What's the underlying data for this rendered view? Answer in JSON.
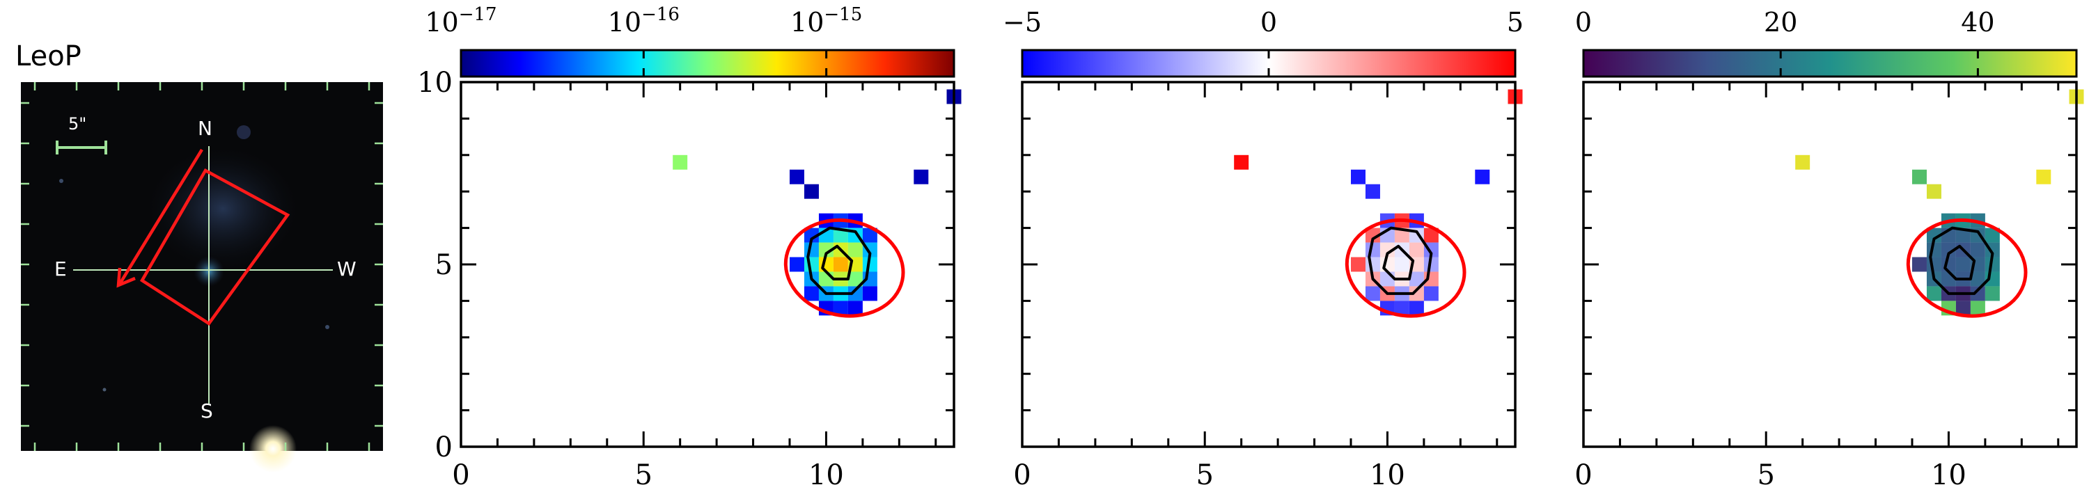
{
  "panel_title": "LeoP",
  "image_panel": {
    "scale_label": "5\"",
    "compass": {
      "north": "N",
      "south": "S",
      "east": "E",
      "west": "W"
    }
  },
  "chart_data": [
    {
      "type": "heatmap",
      "title": "",
      "xlabel": "",
      "ylabel": "",
      "xlim": [
        0,
        13.5
      ],
      "ylim": [
        0,
        10
      ],
      "xticks": [
        "0",
        "5",
        "10"
      ],
      "yticks": [
        "0",
        "5",
        "10"
      ],
      "colorbar": {
        "scale": "log",
        "range": [
          1e-17,
          5e-15
        ],
        "tick_values": [
          1e-17,
          1e-16,
          1e-15
        ],
        "tick_labels": [
          {
            "base": "10",
            "exp": "−17"
          },
          {
            "base": "10",
            "exp": "−16"
          },
          {
            "base": "10",
            "exp": "−15"
          }
        ],
        "colormap": "jet"
      },
      "contours": "black",
      "ellipse": {
        "center": [
          10.5,
          4.9
        ],
        "color": "#ff0000"
      },
      "pixels": [
        {
          "x": 6.0,
          "y": 7.8,
          "v": 2.5e-16
        },
        {
          "x": 13.5,
          "y": 9.6,
          "v": 1.2e-17
        },
        {
          "x": 9.2,
          "y": 7.4,
          "v": 1.5e-17
        },
        {
          "x": 9.6,
          "y": 7.0,
          "v": 1.3e-17
        },
        {
          "x": 12.6,
          "y": 7.4,
          "v": 1.4e-17
        },
        {
          "x": 10.0,
          "y": 6.2,
          "v": 2e-17
        },
        {
          "x": 10.4,
          "y": 6.2,
          "v": 3e-17
        },
        {
          "x": 10.8,
          "y": 6.2,
          "v": 2e-17
        },
        {
          "x": 9.6,
          "y": 5.8,
          "v": 3e-17
        },
        {
          "x": 10.0,
          "y": 5.8,
          "v": 8e-17
        },
        {
          "x": 10.4,
          "y": 5.8,
          "v": 1.3e-16
        },
        {
          "x": 10.8,
          "y": 5.8,
          "v": 9e-17
        },
        {
          "x": 11.2,
          "y": 5.8,
          "v": 3e-17
        },
        {
          "x": 9.6,
          "y": 5.4,
          "v": 6e-17
        },
        {
          "x": 10.0,
          "y": 5.4,
          "v": 2.6e-16
        },
        {
          "x": 10.4,
          "y": 5.4,
          "v": 4e-16
        },
        {
          "x": 10.8,
          "y": 5.4,
          "v": 2.8e-16
        },
        {
          "x": 11.2,
          "y": 5.4,
          "v": 7e-17
        },
        {
          "x": 9.2,
          "y": 5.0,
          "v": 2.5e-17
        },
        {
          "x": 9.6,
          "y": 5.0,
          "v": 1.1e-16
        },
        {
          "x": 10.0,
          "y": 5.0,
          "v": 5.5e-16
        },
        {
          "x": 10.4,
          "y": 5.0,
          "v": 8e-16
        },
        {
          "x": 10.8,
          "y": 5.0,
          "v": 4.5e-16
        },
        {
          "x": 11.2,
          "y": 5.0,
          "v": 9e-17
        },
        {
          "x": 9.6,
          "y": 4.6,
          "v": 6e-17
        },
        {
          "x": 10.0,
          "y": 4.6,
          "v": 2.4e-16
        },
        {
          "x": 10.4,
          "y": 4.6,
          "v": 3.5e-16
        },
        {
          "x": 10.8,
          "y": 4.6,
          "v": 2.2e-16
        },
        {
          "x": 11.2,
          "y": 4.6,
          "v": 5e-17
        },
        {
          "x": 9.6,
          "y": 4.2,
          "v": 2.5e-17
        },
        {
          "x": 10.0,
          "y": 4.2,
          "v": 6e-17
        },
        {
          "x": 10.4,
          "y": 4.2,
          "v": 9e-17
        },
        {
          "x": 10.8,
          "y": 4.2,
          "v": 5e-17
        },
        {
          "x": 11.2,
          "y": 4.2,
          "v": 2e-17
        },
        {
          "x": 10.0,
          "y": 3.8,
          "v": 2e-17
        },
        {
          "x": 10.4,
          "y": 3.8,
          "v": 2.5e-17
        },
        {
          "x": 10.8,
          "y": 3.8,
          "v": 2e-17
        }
      ]
    },
    {
      "type": "heatmap",
      "title": "",
      "xlabel": "",
      "ylabel": "",
      "xlim": [
        0,
        13.5
      ],
      "ylim": [
        0,
        10
      ],
      "xticks": [
        "0",
        "5",
        "10"
      ],
      "yticks": [
        "0",
        "5",
        "10"
      ],
      "colorbar": {
        "scale": "linear",
        "range": [
          -5,
          5
        ],
        "tick_values": [
          -5,
          0,
          5
        ],
        "tick_labels": [
          {
            "base": "−5",
            "exp": ""
          },
          {
            "base": "0",
            "exp": ""
          },
          {
            "base": "5",
            "exp": ""
          }
        ],
        "colormap": "bwr"
      },
      "contours": "black",
      "ellipse": {
        "center": [
          10.5,
          4.9
        ],
        "color": "#ff0000"
      },
      "pixels": [
        {
          "x": 6.0,
          "y": 7.8,
          "v": 4.8
        },
        {
          "x": 13.5,
          "y": 9.6,
          "v": 4.5
        },
        {
          "x": 9.2,
          "y": 7.4,
          "v": -4.5
        },
        {
          "x": 9.6,
          "y": 7.0,
          "v": -4.2
        },
        {
          "x": 12.6,
          "y": 7.4,
          "v": -4.6
        },
        {
          "x": 10.0,
          "y": 6.2,
          "v": -3.5
        },
        {
          "x": 10.4,
          "y": 6.2,
          "v": 3.8
        },
        {
          "x": 10.8,
          "y": 6.2,
          "v": -4.0
        },
        {
          "x": 9.6,
          "y": 5.8,
          "v": 3.0
        },
        {
          "x": 10.0,
          "y": 5.8,
          "v": -1.5
        },
        {
          "x": 10.4,
          "y": 5.8,
          "v": 1.5
        },
        {
          "x": 10.8,
          "y": 5.8,
          "v": -0.8
        },
        {
          "x": 11.2,
          "y": 5.8,
          "v": 4.0
        },
        {
          "x": 9.6,
          "y": 5.4,
          "v": -2.0
        },
        {
          "x": 10.0,
          "y": 5.4,
          "v": 0.6
        },
        {
          "x": 10.4,
          "y": 5.4,
          "v": -0.5
        },
        {
          "x": 10.8,
          "y": 5.4,
          "v": 1.2
        },
        {
          "x": 11.2,
          "y": 5.4,
          "v": -2.5
        },
        {
          "x": 9.2,
          "y": 5.0,
          "v": 3.5
        },
        {
          "x": 9.6,
          "y": 5.0,
          "v": -1.0
        },
        {
          "x": 10.0,
          "y": 5.0,
          "v": 0.3
        },
        {
          "x": 10.4,
          "y": 5.0,
          "v": -0.3
        },
        {
          "x": 10.8,
          "y": 5.0,
          "v": 0.8
        },
        {
          "x": 11.2,
          "y": 5.0,
          "v": -1.8
        },
        {
          "x": 9.6,
          "y": 4.6,
          "v": 1.8
        },
        {
          "x": 10.0,
          "y": 4.6,
          "v": -1.2
        },
        {
          "x": 10.4,
          "y": 4.6,
          "v": 0.5
        },
        {
          "x": 10.8,
          "y": 4.6,
          "v": -1.5
        },
        {
          "x": 11.2,
          "y": 4.6,
          "v": 2.2
        },
        {
          "x": 9.6,
          "y": 4.2,
          "v": -3.0
        },
        {
          "x": 10.0,
          "y": 4.2,
          "v": 2.5
        },
        {
          "x": 10.4,
          "y": 4.2,
          "v": -2.0
        },
        {
          "x": 10.8,
          "y": 4.2,
          "v": 1.5
        },
        {
          "x": 11.2,
          "y": 4.2,
          "v": -3.5
        },
        {
          "x": 10.0,
          "y": 3.8,
          "v": -4.0
        },
        {
          "x": 10.4,
          "y": 3.8,
          "v": -3.8
        },
        {
          "x": 10.8,
          "y": 3.8,
          "v": -4.2
        }
      ]
    },
    {
      "type": "heatmap",
      "title": "",
      "xlabel": "",
      "ylabel": "",
      "xlim": [
        0,
        13.5
      ],
      "ylim": [
        0,
        10
      ],
      "xticks": [
        "0",
        "5",
        "10"
      ],
      "yticks": [
        "0",
        "5",
        "10"
      ],
      "colorbar": {
        "scale": "linear",
        "range": [
          0,
          50
        ],
        "tick_values": [
          0,
          20,
          40
        ],
        "tick_labels": [
          {
            "base": "0",
            "exp": ""
          },
          {
            "base": "20",
            "exp": ""
          },
          {
            "base": "40",
            "exp": ""
          }
        ],
        "colormap": "viridis"
      },
      "contours": "black",
      "ellipse": {
        "center": [
          10.5,
          4.9
        ],
        "color": "#ff0000"
      },
      "pixels": [
        {
          "x": 6.0,
          "y": 7.8,
          "v": 48
        },
        {
          "x": 13.5,
          "y": 9.6,
          "v": 48
        },
        {
          "x": 9.2,
          "y": 7.4,
          "v": 35
        },
        {
          "x": 9.6,
          "y": 7.0,
          "v": 47
        },
        {
          "x": 12.6,
          "y": 7.4,
          "v": 49
        },
        {
          "x": 10.0,
          "y": 6.2,
          "v": 22
        },
        {
          "x": 10.4,
          "y": 6.2,
          "v": 25
        },
        {
          "x": 10.8,
          "y": 6.2,
          "v": 20
        },
        {
          "x": 9.6,
          "y": 5.8,
          "v": 20
        },
        {
          "x": 10.0,
          "y": 5.8,
          "v": 15
        },
        {
          "x": 10.4,
          "y": 5.8,
          "v": 16
        },
        {
          "x": 10.8,
          "y": 5.8,
          "v": 18
        },
        {
          "x": 11.2,
          "y": 5.8,
          "v": 24
        },
        {
          "x": 9.6,
          "y": 5.4,
          "v": 17
        },
        {
          "x": 10.0,
          "y": 5.4,
          "v": 14
        },
        {
          "x": 10.4,
          "y": 5.4,
          "v": 13
        },
        {
          "x": 10.8,
          "y": 5.4,
          "v": 15
        },
        {
          "x": 11.2,
          "y": 5.4,
          "v": 20
        },
        {
          "x": 9.2,
          "y": 5.0,
          "v": 10
        },
        {
          "x": 9.6,
          "y": 5.0,
          "v": 16
        },
        {
          "x": 10.0,
          "y": 5.0,
          "v": 14
        },
        {
          "x": 10.4,
          "y": 5.0,
          "v": 15
        },
        {
          "x": 10.8,
          "y": 5.0,
          "v": 16
        },
        {
          "x": 11.2,
          "y": 5.0,
          "v": 22
        },
        {
          "x": 9.6,
          "y": 4.6,
          "v": 18
        },
        {
          "x": 10.0,
          "y": 4.6,
          "v": 15
        },
        {
          "x": 10.4,
          "y": 4.6,
          "v": 14
        },
        {
          "x": 10.8,
          "y": 4.6,
          "v": 17
        },
        {
          "x": 11.2,
          "y": 4.6,
          "v": 25
        },
        {
          "x": 9.6,
          "y": 4.2,
          "v": 28
        },
        {
          "x": 10.0,
          "y": 4.2,
          "v": 8
        },
        {
          "x": 10.4,
          "y": 4.2,
          "v": 6
        },
        {
          "x": 10.8,
          "y": 4.2,
          "v": 12
        },
        {
          "x": 11.2,
          "y": 4.2,
          "v": 30
        },
        {
          "x": 10.0,
          "y": 3.8,
          "v": 38
        },
        {
          "x": 10.4,
          "y": 3.8,
          "v": 8
        },
        {
          "x": 10.8,
          "y": 3.8,
          "v": 37
        }
      ]
    }
  ]
}
